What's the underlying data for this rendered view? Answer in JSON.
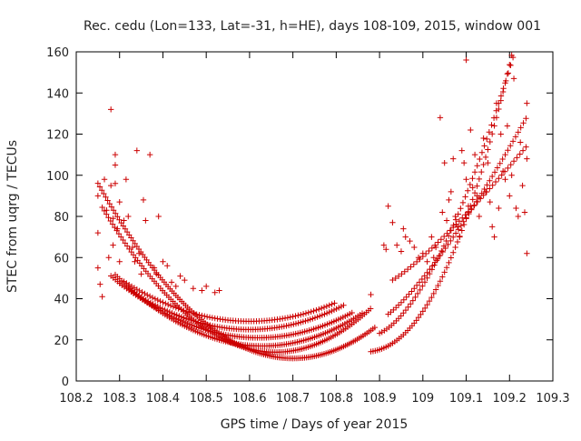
{
  "chart_data": {
    "type": "scatter",
    "title": "Rec. cedu (Lon=133, Lat=-31, h=HE), days 108-109, 2015, window 001",
    "xlabel": "GPS time / Days of year 2015",
    "ylabel": "STEC from uqrg / TECUs",
    "xlim": [
      108.2,
      109.3
    ],
    "ylim": [
      0,
      160
    ],
    "xticks": [
      108.2,
      108.3,
      108.4,
      108.5,
      108.6,
      108.7,
      108.8,
      108.9,
      109,
      109.1,
      109.2,
      109.3
    ],
    "xtick_labels": [
      "108.2",
      "108.3",
      "108.4",
      "108.5",
      "108.6",
      "108.7",
      "108.8",
      "108.9",
      "109",
      "109.1",
      "109.2",
      "109.3"
    ],
    "yticks": [
      0,
      20,
      40,
      60,
      80,
      100,
      120,
      140,
      160
    ],
    "ytick_labels": [
      "0",
      "20",
      "40",
      "60",
      "80",
      "100",
      "120",
      "140",
      "160"
    ],
    "grid": false,
    "legend": "none",
    "marker": "plus",
    "color": "#cc0000",
    "series": [
      {
        "points": [
          [
            108.25,
            90
          ],
          [
            108.25,
            72
          ],
          [
            108.25,
            55
          ],
          [
            108.255,
            47
          ],
          [
            108.26,
            41
          ],
          [
            108.265,
            98
          ],
          [
            108.27,
            83
          ],
          [
            108.275,
            60
          ],
          [
            108.28,
            132
          ],
          [
            108.28,
            95
          ],
          [
            108.285,
            79
          ],
          [
            108.285,
            66
          ],
          [
            108.29,
            110
          ],
          [
            108.29,
            105
          ],
          [
            108.29,
            96
          ],
          [
            108.295,
            74
          ],
          [
            108.3,
            87
          ],
          [
            108.3,
            58
          ],
          [
            108.31,
            78
          ],
          [
            108.315,
            98
          ],
          [
            108.32,
            80
          ],
          [
            108.33,
            65
          ],
          [
            108.335,
            58
          ],
          [
            108.34,
            112
          ],
          [
            108.345,
            62
          ],
          [
            108.35,
            52
          ],
          [
            108.355,
            88
          ],
          [
            108.36,
            78
          ],
          [
            108.37,
            110
          ],
          [
            108.38,
            55
          ],
          [
            108.385,
            52
          ],
          [
            108.39,
            80
          ],
          [
            108.4,
            58
          ],
          [
            108.41,
            56
          ],
          [
            108.42,
            48
          ],
          [
            108.43,
            46
          ],
          [
            108.44,
            51
          ],
          [
            108.45,
            49
          ],
          [
            108.47,
            45
          ],
          [
            108.49,
            44
          ],
          [
            108.5,
            46
          ],
          [
            108.52,
            43
          ],
          [
            108.53,
            44
          ],
          [
            108.88,
            42
          ],
          [
            108.91,
            66
          ],
          [
            108.915,
            64
          ],
          [
            108.92,
            85
          ],
          [
            108.93,
            77
          ],
          [
            108.94,
            66
          ],
          [
            108.95,
            63
          ],
          [
            108.955,
            74
          ],
          [
            108.96,
            70
          ],
          [
            108.97,
            68
          ],
          [
            108.98,
            65
          ],
          [
            108.99,
            60
          ],
          [
            109.0,
            62
          ],
          [
            109.01,
            58
          ],
          [
            109.02,
            70
          ],
          [
            109.025,
            60
          ],
          [
            109.03,
            65
          ],
          [
            109.04,
            128
          ],
          [
            109.045,
            82
          ],
          [
            109.05,
            106
          ],
          [
            109.055,
            78
          ],
          [
            109.06,
            88
          ],
          [
            109.065,
            92
          ],
          [
            109.07,
            108
          ],
          [
            109.075,
            80
          ],
          [
            109.08,
            75
          ],
          [
            109.085,
            70
          ],
          [
            109.09,
            112
          ],
          [
            109.095,
            106
          ],
          [
            109.1,
            156
          ],
          [
            109.1,
            98
          ],
          [
            109.105,
            85
          ],
          [
            109.11,
            122
          ],
          [
            109.115,
            94
          ],
          [
            109.12,
            110
          ],
          [
            109.125,
            90
          ],
          [
            109.13,
            80
          ],
          [
            109.14,
            118
          ],
          [
            109.145,
            92
          ],
          [
            109.15,
            106
          ],
          [
            109.155,
            87
          ],
          [
            109.16,
            75
          ],
          [
            109.165,
            70
          ],
          [
            109.17,
            135
          ],
          [
            109.175,
            84
          ],
          [
            109.18,
            120
          ],
          [
            109.185,
            102
          ],
          [
            109.19,
            98
          ],
          [
            109.195,
            124
          ],
          [
            109.2,
            90
          ],
          [
            109.205,
            100
          ],
          [
            109.21,
            147
          ],
          [
            109.215,
            84
          ],
          [
            109.22,
            80
          ],
          [
            109.225,
            116
          ],
          [
            109.23,
            95
          ],
          [
            109.235,
            82
          ],
          [
            109.24,
            135
          ],
          [
            109.24,
            108
          ],
          [
            109.24,
            62
          ]
        ]
      }
    ]
  }
}
